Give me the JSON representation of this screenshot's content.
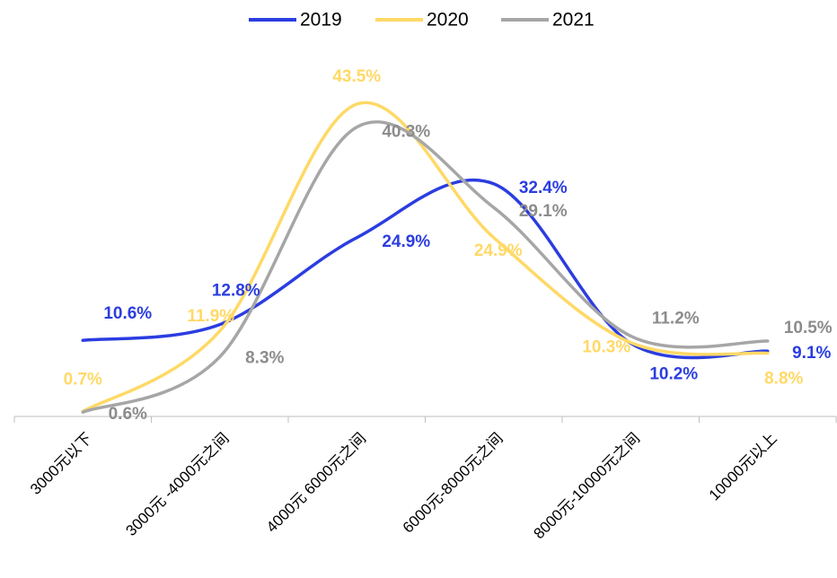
{
  "chart_data": {
    "type": "line",
    "categories": [
      "3000元以下",
      "3000元 -4000元之间",
      "4000元 6000元之间",
      "6000元-8000元之间",
      "8000元-10000元之间",
      "10000元以上"
    ],
    "series": [
      {
        "name": "2019",
        "color": "#2b3de0",
        "values": [
          10.6,
          12.8,
          24.9,
          32.4,
          10.2,
          9.1
        ],
        "value_labels": [
          "10.6%",
          "12.8%",
          "24.9%",
          "32.4%",
          "10.2%",
          "9.1%"
        ]
      },
      {
        "name": "2020",
        "color": "#ffd966",
        "values": [
          0.7,
          11.9,
          43.5,
          24.9,
          10.3,
          8.8
        ],
        "value_labels": [
          "0.7%",
          "11.9%",
          "43.5%",
          "24.9%",
          "10.3%",
          "8.8%"
        ]
      },
      {
        "name": "2021",
        "color": "#a6a6a6",
        "values": [
          0.6,
          8.3,
          40.3,
          29.1,
          11.2,
          10.5
        ],
        "value_labels": [
          "0.6%",
          "8.3%",
          "40.3%",
          "29.1%",
          "11.2%",
          "10.5%"
        ]
      }
    ],
    "ylim": [
      0,
      50
    ],
    "legend": "top",
    "smooth": true
  }
}
